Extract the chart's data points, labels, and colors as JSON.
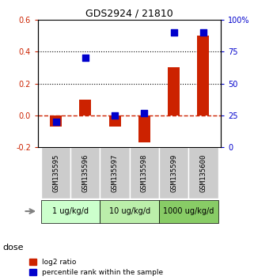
{
  "title": "GDS2924 / 21810",
  "samples": [
    "GSM135595",
    "GSM135596",
    "GSM135597",
    "GSM135598",
    "GSM135599",
    "GSM135600"
  ],
  "log2_ratio": [
    -0.07,
    0.1,
    -0.07,
    -0.17,
    0.3,
    0.5
  ],
  "percentile_rank": [
    20,
    70,
    25,
    27,
    90,
    90
  ],
  "bar_color": "#cc2200",
  "dot_color": "#0000cc",
  "left_ylim": [
    -0.2,
    0.6
  ],
  "right_ylim": [
    0,
    100
  ],
  "left_yticks": [
    -0.2,
    0.0,
    0.2,
    0.4,
    0.6
  ],
  "right_yticks": [
    0,
    25,
    50,
    75,
    100
  ],
  "right_yticklabels": [
    "0",
    "25",
    "50",
    "75",
    "100%"
  ],
  "hlines_dotted": [
    0.2,
    0.4
  ],
  "hline_dashed_red": 0.0,
  "dose_label": "dose",
  "legend_red_label": "log2 ratio",
  "legend_blue_label": "percentile rank within the sample",
  "bar_width": 0.4,
  "dot_size": 40,
  "sample_cell_color": "#cccccc",
  "dose_groups": [
    {
      "label": "1 ug/kg/d",
      "indices": [
        0,
        1
      ],
      "color": "#ccffcc"
    },
    {
      "label": "10 ug/kg/d",
      "indices": [
        2,
        3
      ],
      "color": "#bbeeaa"
    },
    {
      "label": "1000 ug/kg/d",
      "indices": [
        4,
        5
      ],
      "color": "#88cc66"
    }
  ]
}
